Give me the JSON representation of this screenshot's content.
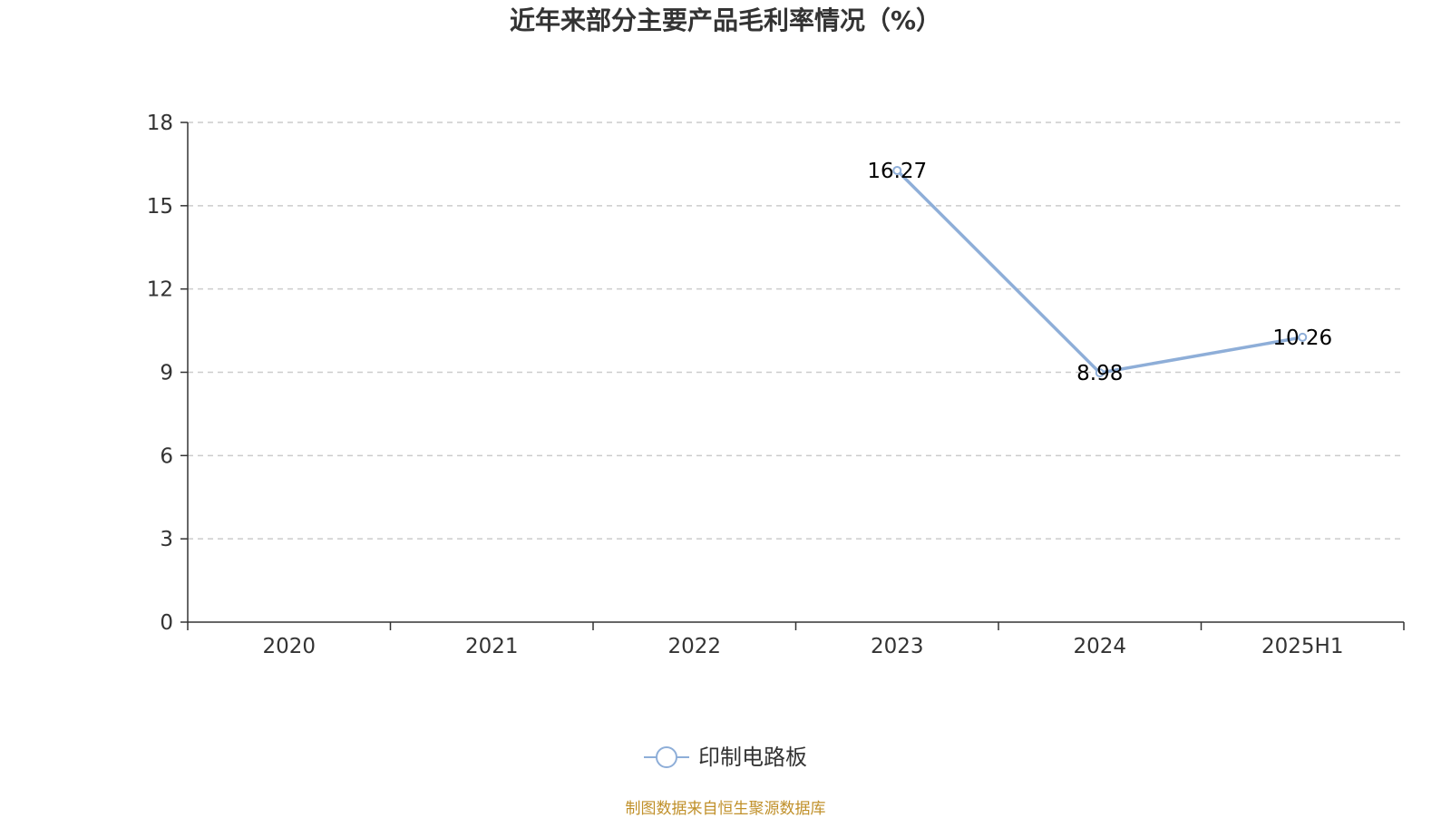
{
  "title": "近年来部分主要产品毛利率情况（%）",
  "source": "制图数据来自恒生聚源数据库",
  "colors": {
    "series": "#8eaed8",
    "grid": "#cccccc",
    "axis": "#333333",
    "title": "#333333",
    "source": "#c0902a"
  },
  "chart_data": {
    "type": "line",
    "title": "近年来部分主要产品毛利率情况（%）",
    "categories": [
      "2020",
      "2021",
      "2022",
      "2023",
      "2024",
      "2025H1"
    ],
    "series": [
      {
        "name": "印制电路板",
        "values": [
          null,
          null,
          null,
          16.27,
          8.98,
          10.26
        ]
      }
    ],
    "data_labels": [
      "",
      "",
      "",
      "16.27",
      "8.98",
      "10.26"
    ],
    "ylim": [
      0,
      18
    ],
    "yticks": [
      "0",
      "3",
      "6",
      "9",
      "12",
      "15",
      "18"
    ],
    "grid": true,
    "legend_position": "bottom-center",
    "xlabel": "",
    "ylabel": ""
  }
}
